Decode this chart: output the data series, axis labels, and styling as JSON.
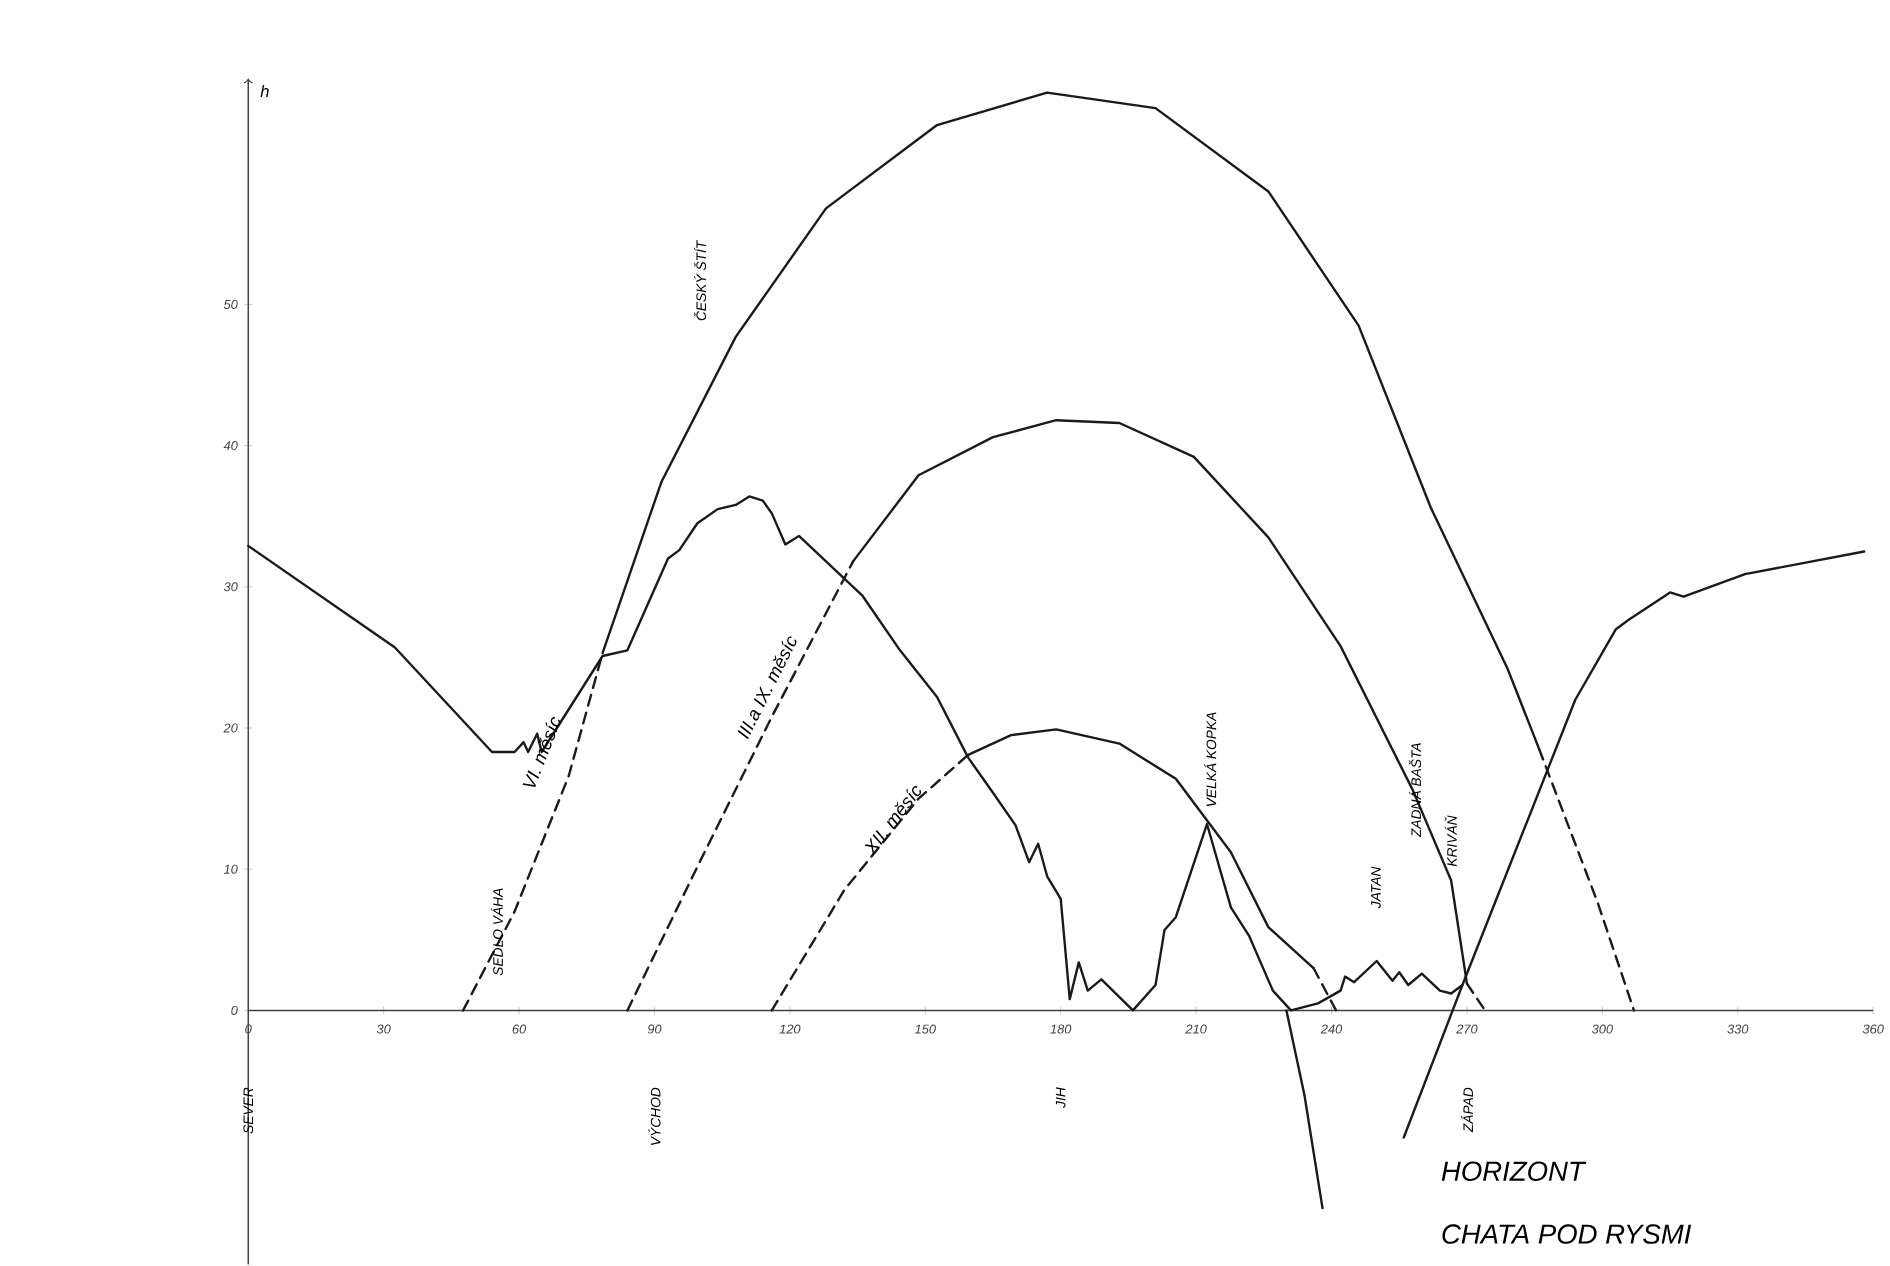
{
  "chart_data": {
    "type": "line",
    "title": "HORIZONT",
    "subtitle": "CHATA POD RYSMI",
    "ylabel": "h",
    "xlim": [
      0,
      360
    ],
    "xticks": [
      0,
      30,
      60,
      90,
      120,
      150,
      180,
      210,
      240,
      270,
      300,
      330,
      360
    ],
    "ylim": [
      -18,
      66
    ],
    "yticks": [
      0,
      10,
      20,
      30,
      40,
      50
    ],
    "series": [
      {
        "color": "#1a1a1a",
        "line_style": "solid",
        "x": [
          0,
          32.5,
          54,
          59,
          61,
          62,
          64,
          65,
          78.5,
          84,
          93,
          95.5,
          99.5,
          104,
          108,
          111,
          114,
          116,
          119,
          122,
          136,
          144.4,
          152.6,
          159.5,
          164.8,
          170,
          173,
          175,
          177,
          180,
          182,
          184,
          186,
          189,
          196,
          201,
          203,
          205.5,
          212.4,
          217.7,
          221.7,
          227,
          231,
          237,
          242,
          243,
          245,
          250,
          253.5,
          255,
          257,
          260,
          264,
          266.5,
          269,
          294,
          303,
          306,
          315,
          318,
          331.6,
          358
        ],
        "values": [
          32.9,
          25.7,
          18.3,
          18.3,
          19,
          18.3,
          19.6,
          18.3,
          25.1,
          25.5,
          32,
          32.6,
          34.5,
          35.5,
          35.8,
          36.4,
          36.1,
          35.2,
          33,
          33.6,
          29.4,
          25.5,
          22.2,
          17.9,
          15.5,
          13.1,
          10.5,
          11.8,
          9.5,
          7.9,
          0.8,
          3.4,
          1.4,
          2.2,
          0,
          1.8,
          5.7,
          6.6,
          13.2,
          7.3,
          5.3,
          1.4,
          0,
          0.5,
          1.4,
          2.4,
          2,
          3.5,
          2.1,
          2.7,
          1.8,
          2.6,
          1.4,
          1.2,
          1.8,
          22,
          27,
          27.7,
          29.6,
          29.3,
          30.9,
          32.5
        ]
      },
      {
        "color": "#1a1a1a",
        "line_style": "solid",
        "x": [
          230,
          234,
          236,
          238
        ],
        "values": [
          0,
          -6,
          -10,
          -14
        ]
      },
      {
        "color": "#1a1a1a",
        "line_style": "solid",
        "x": [
          269,
          256
        ],
        "values": [
          1.8,
          -9
        ]
      },
      {
        "name": "VI. měsíc",
        "color": "#1a1a1a",
        "line_style": "dashed",
        "x": [
          47.6,
          59,
          71,
          78.5
        ],
        "values": [
          0,
          7,
          16.6,
          25.3
        ]
      },
      {
        "color": "#1a1a1a",
        "line_style": "solid",
        "x": [
          78.5,
          91.5,
          108,
          128,
          152.6,
          177,
          201,
          226,
          246,
          262,
          279,
          286
        ],
        "values": [
          25.3,
          37.4,
          47.7,
          56.8,
          62.7,
          65,
          63.9,
          58,
          48.5,
          35.6,
          24.2,
          18.5
        ]
      },
      {
        "color": "#1a1a1a",
        "line_style": "dashed",
        "x": [
          286,
          299,
          307
        ],
        "values": [
          18.5,
          7.6,
          0
        ]
      },
      {
        "name": "III.a IX. měsíc",
        "color": "#1a1a1a",
        "line_style": "dashed",
        "x": [
          84,
          100,
          116,
          134
        ],
        "values": [
          0,
          10.5,
          20.8,
          31.8
        ]
      },
      {
        "color": "#1a1a1a",
        "line_style": "solid",
        "x": [
          134,
          148.5,
          165,
          179,
          193,
          209.5,
          226,
          242,
          258,
          266.5,
          270
        ],
        "values": [
          31.8,
          37.9,
          40.6,
          41.8,
          41.6,
          39.2,
          33.5,
          25.8,
          15.6,
          9.2,
          1.9
        ]
      },
      {
        "color": "#1a1a1a",
        "line_style": "dashed",
        "x": [
          270,
          274
        ],
        "values": [
          1.9,
          0
        ]
      },
      {
        "name": "XII. měsíc",
        "color": "#1a1a1a",
        "line_style": "dashed",
        "x": [
          116,
          132,
          148.5,
          159.5
        ],
        "values": [
          0,
          8.5,
          15,
          18.1
        ]
      },
      {
        "color": "#1a1a1a",
        "line_style": "solid",
        "x": [
          159.5,
          169,
          179,
          193,
          205.5,
          217.7,
          226,
          236
        ],
        "values": [
          18.1,
          19.5,
          19.9,
          18.9,
          16.4,
          11.2,
          5.9,
          3
        ]
      },
      {
        "color": "#1a1a1a",
        "line_style": "dashed",
        "x": [
          236,
          241
        ],
        "values": [
          3,
          0
        ]
      }
    ],
    "annotations": [
      "SEDLO VÁHA",
      "ČESKÝ ŠTÍT",
      "VELKÁ KOPKA",
      "JATAN",
      "ZADNÁ BAŠTA",
      "KRIVÁŇ",
      "SEVER",
      "VÝCHOD",
      "JIH",
      "ZÁPAD"
    ]
  }
}
